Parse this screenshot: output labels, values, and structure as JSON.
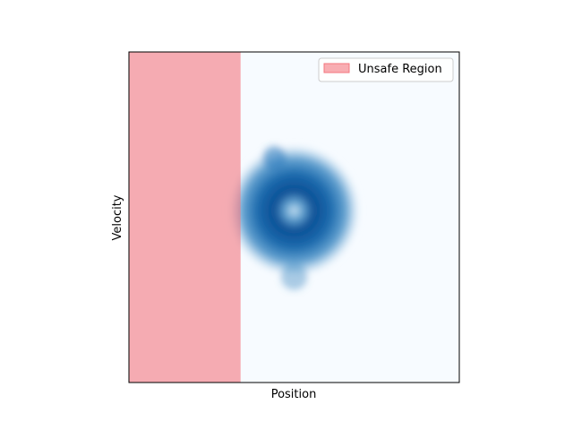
{
  "chart_data": {
    "type": "heatmap",
    "title": "",
    "xlabel": "Position",
    "ylabel": "Velocity",
    "xticks": [],
    "yticks": [],
    "xlim": [
      0,
      1
    ],
    "ylim": [
      0,
      1
    ],
    "grid": false,
    "colormap": "Blues",
    "unsafe_region": {
      "label": "Unsafe Region",
      "x_range": [
        0,
        0.338
      ],
      "color": "#f4777f",
      "opacity": 0.6
    },
    "density": {
      "center": [
        0.5,
        0.52
      ],
      "inner_radius": 0.05,
      "ring_radius": 0.13,
      "outer_radius": 0.2,
      "peak_color": "#084a8f",
      "background_color": "#f7fbff"
    },
    "legend": {
      "position": "top-right",
      "entries": [
        "Unsafe Region"
      ]
    }
  }
}
